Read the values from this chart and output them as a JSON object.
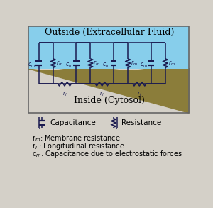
{
  "title_outside": "Outside (Extracellular Fluid)",
  "title_inside": "Inside (Cytosol)",
  "bg_outside_top": "#87CEEB",
  "bg_inside": "#8B7D3A",
  "bg_figure": "#d4d0c8",
  "circuit_color": "#1a1a50",
  "n_units": 4,
  "legend_cap_label": "Capacitance",
  "legend_res_label": "Resistance",
  "label_rm": "r$_{m}$: Membrane resistance",
  "label_rl": "r$_{l}$ : Longitudinal resistance",
  "label_cm": "c$_{m}$: Capacitance due to electrostatic forces",
  "font_size_title": 9,
  "font_size_label": 7,
  "font_size_legend": 7.5,
  "font_size_circuit": 5.5,
  "text_color": "#000000"
}
